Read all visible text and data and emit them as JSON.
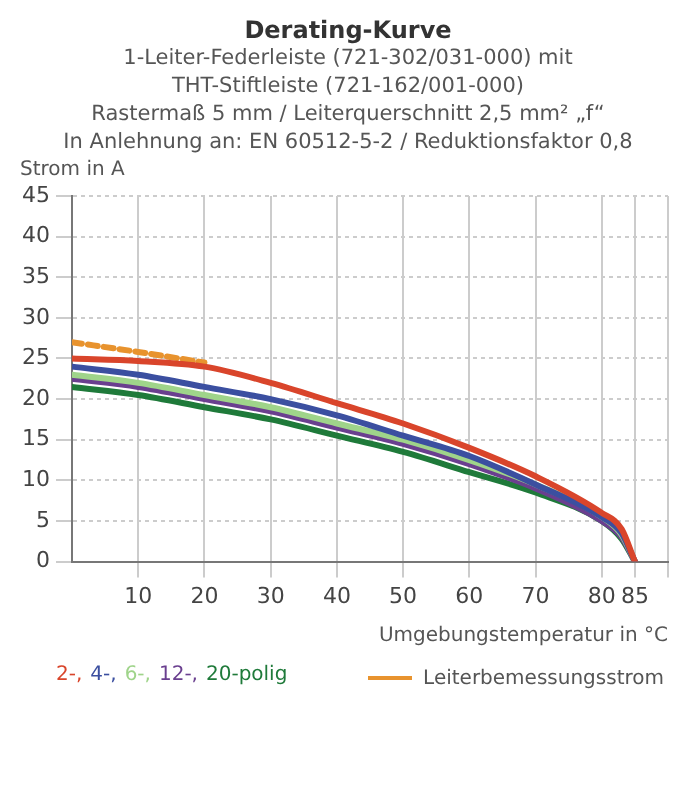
{
  "chart_data": {
    "type": "line",
    "title": "Derating-Kurve",
    "subtitle": "1-Leiter-Federleiste (721-302/031-000) mit\nTHT-Stiftleiste (721-162/001-000)\nRastermaß 5 mm / Leiterquerschnitt 2,5 mm² „f“\nIn Anlehnung an: EN 60512-5-2 / Reduktionsfaktor 0,8",
    "xlabel": "Umgebungstemperatur in °C",
    "ylabel": "Strom in A",
    "x": [
      0,
      10,
      20,
      30,
      40,
      50,
      60,
      70,
      80,
      83,
      85
    ],
    "series": [
      {
        "name": "2-,",
        "color": "#d9452b",
        "values": [
          25,
          24.7,
          24,
          22,
          19.5,
          17,
          14,
          10.5,
          6,
          4,
          0
        ]
      },
      {
        "name": "4-,",
        "color": "#3b4fa0",
        "values": [
          24,
          23,
          21.5,
          20,
          18,
          15.5,
          13,
          9.5,
          5.5,
          3.5,
          0
        ]
      },
      {
        "name": "6-,",
        "color": "#9fd48a",
        "values": [
          23,
          22,
          20.5,
          19,
          17,
          15,
          12.5,
          9.5,
          5.5,
          3.3,
          0
        ]
      },
      {
        "name": "12-,",
        "color": "#6a3f8f",
        "values": [
          22.5,
          21.5,
          20,
          18.5,
          16.5,
          14.5,
          12,
          9,
          5,
          3,
          0
        ]
      },
      {
        "name": "20-polig",
        "color": "#1f7a3a",
        "values": [
          21.5,
          20.5,
          19,
          17.5,
          15.5,
          13.5,
          11,
          8.5,
          5,
          2.8,
          0
        ]
      },
      {
        "name": "Leiterbemessungsstrom",
        "color": "#e8932e",
        "line_style": "dashed",
        "x": [
          0,
          10,
          20
        ],
        "values": [
          27,
          25.8,
          24.5
        ]
      }
    ],
    "xlim": [
      0,
      90
    ],
    "xticks": [
      10,
      20,
      30,
      40,
      50,
      60,
      70,
      80,
      85,
      {
        "value": 90,
        "label": null
      }
    ],
    "ylim": [
      0,
      45
    ],
    "yticks": [
      0,
      5,
      10,
      15,
      20,
      25,
      30,
      35,
      40,
      45
    ],
    "grid": true,
    "legend": "bottom",
    "marker": "none"
  }
}
